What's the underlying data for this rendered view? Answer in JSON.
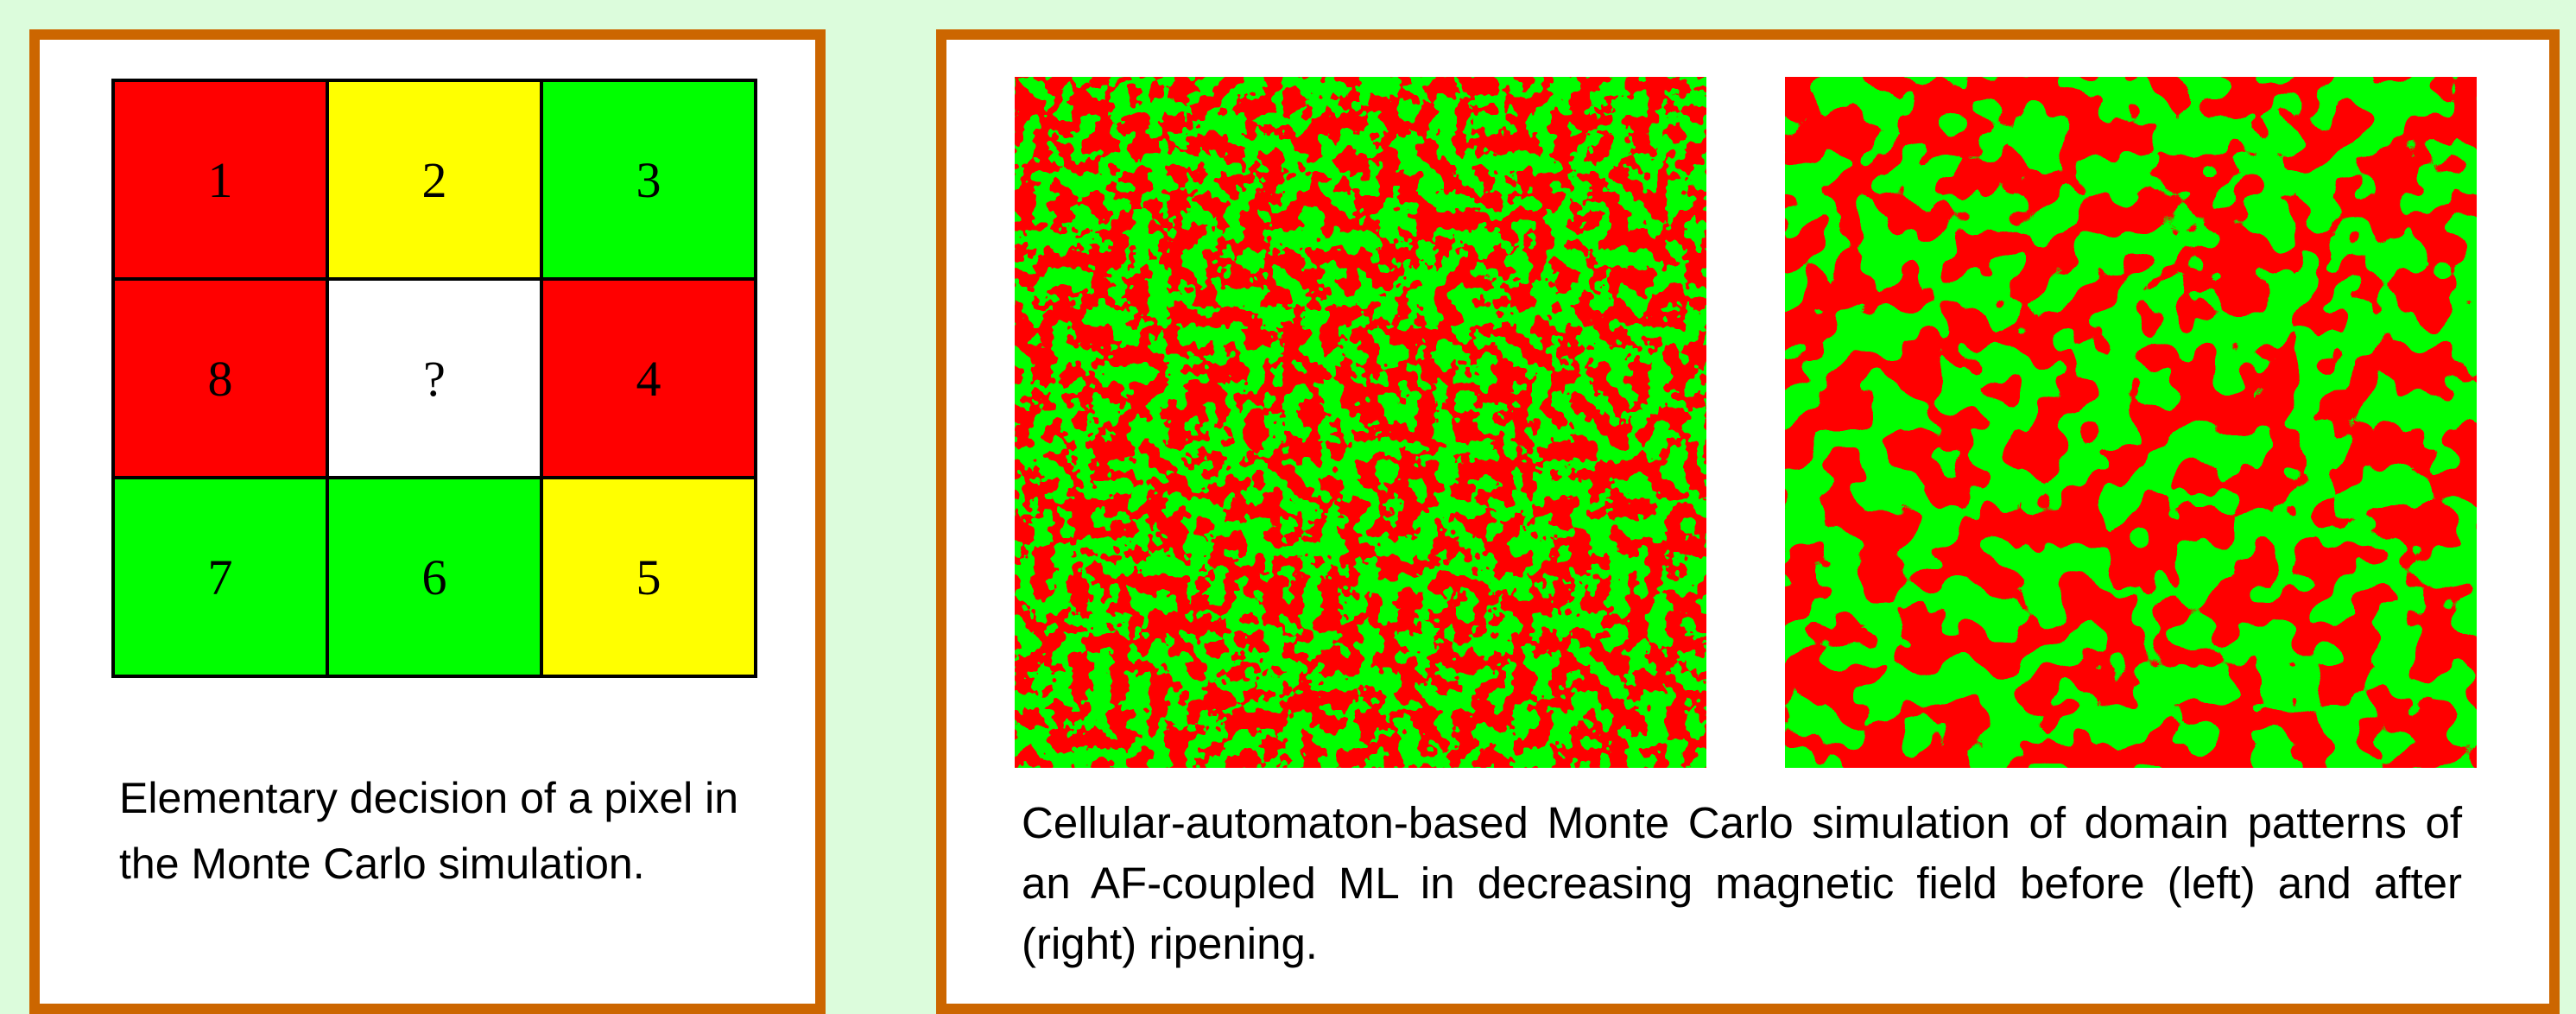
{
  "grid": {
    "cells": [
      "1",
      "2",
      "3",
      "8",
      "?",
      "4",
      "7",
      "6",
      "5"
    ]
  },
  "left_caption": "Elementary decision of a pixel in the Monte Carlo simulation.",
  "right_caption": "Cellular-automaton-based Monte Carlo simulation of domain patterns of an AF-coupled ML in decreasing magnetic field before (left) and after (right) ripening."
}
